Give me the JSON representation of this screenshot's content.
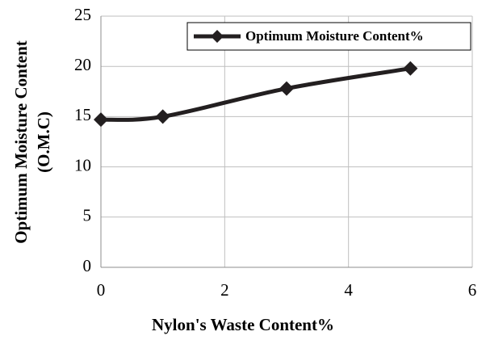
{
  "chart_data": {
    "type": "line",
    "xlabel": "Nylon's Waste Content%",
    "ylabel": [
      "Optimum Moisture Content",
      "(O.M.C)"
    ],
    "x": [
      0,
      1,
      3,
      5
    ],
    "series": [
      {
        "name": "Optimum Moisture Content%",
        "color": "#231f20",
        "values": [
          14.7,
          15.0,
          17.8,
          19.8
        ]
      }
    ],
    "xlim": [
      0,
      6
    ],
    "xticks": [
      0,
      2,
      4,
      6
    ],
    "ylim": [
      0,
      25
    ],
    "yticks": [
      0,
      5,
      10,
      15,
      20,
      25
    ],
    "grid": true,
    "legend": "top-right"
  }
}
